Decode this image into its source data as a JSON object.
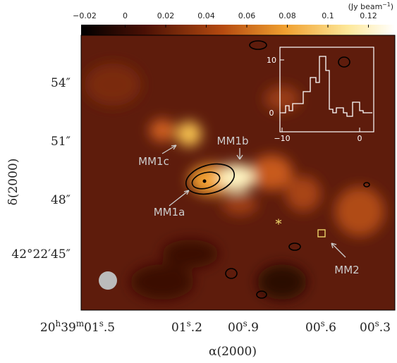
{
  "colorbar": {
    "unit": [
      "(Jy beam",
      "−1",
      ")"
    ],
    "ticks": [
      "−0.02",
      "0",
      "0.02",
      "0.04",
      "0.06",
      "0.08",
      "0.1",
      "0.12"
    ]
  },
  "dec_ticks": [
    "54″",
    "51″",
    "48″",
    "42°22′45″"
  ],
  "ra_ticks": [
    [
      "20",
      "h",
      "39",
      "m",
      "01",
      "s",
      ".5"
    ],
    [
      "01",
      "s",
      ".2"
    ],
    [
      "00",
      "s",
      ".9"
    ],
    [
      "00",
      "s",
      ".6"
    ],
    [
      "00",
      "s",
      ".3"
    ]
  ],
  "x_label": "α(2000)",
  "y_label": "δ(2000)",
  "sources": [
    "MM1c",
    "MM1b",
    "MM1a",
    "MM2"
  ],
  "inset": {
    "y_ticks": [
      "10",
      "0"
    ],
    "x_ticks": [
      "−10",
      "0"
    ]
  }
}
